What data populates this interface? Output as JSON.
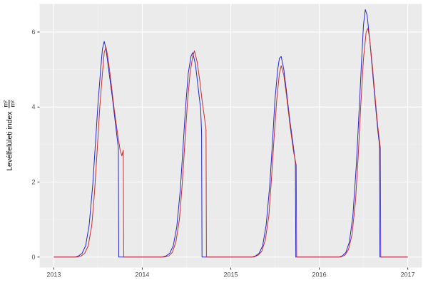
{
  "figure": {
    "bg": "#FFFFFF",
    "panel_bg": "#EBEBEB",
    "grid_major": "#FFFFFF",
    "grid_minor": "#F5F5F5",
    "tick_color": "#333333",
    "tick_label_color": "#4D4D4D"
  },
  "ylabel": {
    "text": "Levélfelületi index",
    "frac_num": "m²",
    "frac_den": "m²"
  },
  "chart_data": {
    "type": "line",
    "title": "",
    "xlabel": "",
    "ylabel": "Levélfelületi index (m²/m²)",
    "legend": "none",
    "grid": "on",
    "x_ticks": [
      2013,
      2014,
      2015,
      2016,
      2017
    ],
    "y_ticks": [
      0,
      2,
      4,
      6
    ],
    "x_minor": [
      2013.5,
      2014.5,
      2015.5,
      2016.5
    ],
    "y_minor": [
      1,
      3,
      5
    ],
    "xlim": [
      2012.84,
      2017.16
    ],
    "ylim": [
      -0.28,
      6.75
    ],
    "series": [
      {
        "name": "series-blue",
        "color": "#2525CE",
        "points": [
          [
            2013.0,
            0
          ],
          [
            2013.24,
            0
          ],
          [
            2013.28,
            0.03
          ],
          [
            2013.32,
            0.1
          ],
          [
            2013.36,
            0.3
          ],
          [
            2013.4,
            0.85
          ],
          [
            2013.44,
            1.9
          ],
          [
            2013.47,
            3.0
          ],
          [
            2013.5,
            4.1
          ],
          [
            2013.53,
            5.0
          ],
          [
            2013.55,
            5.55
          ],
          [
            2013.57,
            5.75
          ],
          [
            2013.59,
            5.55
          ],
          [
            2013.62,
            5.0
          ],
          [
            2013.66,
            4.3
          ],
          [
            2013.7,
            3.5
          ],
          [
            2013.73,
            2.9
          ],
          [
            2013.735,
            0
          ],
          [
            2013.9,
            0
          ],
          [
            2014.22,
            0
          ],
          [
            2014.27,
            0.03
          ],
          [
            2014.31,
            0.1
          ],
          [
            2014.35,
            0.3
          ],
          [
            2014.39,
            0.8
          ],
          [
            2014.43,
            1.8
          ],
          [
            2014.46,
            2.9
          ],
          [
            2014.49,
            4.0
          ],
          [
            2014.52,
            4.9
          ],
          [
            2014.55,
            5.35
          ],
          [
            2014.57,
            5.45
          ],
          [
            2014.6,
            5.15
          ],
          [
            2014.62,
            4.75
          ],
          [
            2014.64,
            4.35
          ],
          [
            2014.66,
            3.95
          ],
          [
            2014.67,
            3.3
          ],
          [
            2014.675,
            0
          ],
          [
            2014.9,
            0
          ],
          [
            2015.24,
            0
          ],
          [
            2015.28,
            0.03
          ],
          [
            2015.32,
            0.1
          ],
          [
            2015.36,
            0.3
          ],
          [
            2015.4,
            0.85
          ],
          [
            2015.44,
            1.9
          ],
          [
            2015.47,
            3.0
          ],
          [
            2015.5,
            4.2
          ],
          [
            2015.53,
            5.0
          ],
          [
            2015.55,
            5.3
          ],
          [
            2015.57,
            5.35
          ],
          [
            2015.6,
            5.0
          ],
          [
            2015.63,
            4.4
          ],
          [
            2015.67,
            3.6
          ],
          [
            2015.71,
            2.9
          ],
          [
            2015.73,
            2.5
          ],
          [
            2015.735,
            0
          ],
          [
            2015.9,
            0
          ],
          [
            2016.22,
            0
          ],
          [
            2016.26,
            0.03
          ],
          [
            2016.3,
            0.12
          ],
          [
            2016.34,
            0.4
          ],
          [
            2016.38,
            1.1
          ],
          [
            2016.42,
            2.5
          ],
          [
            2016.45,
            3.9
          ],
          [
            2016.48,
            5.3
          ],
          [
            2016.5,
            6.2
          ],
          [
            2016.52,
            6.6
          ],
          [
            2016.54,
            6.45
          ],
          [
            2016.57,
            5.8
          ],
          [
            2016.6,
            5.0
          ],
          [
            2016.63,
            4.2
          ],
          [
            2016.66,
            3.4
          ],
          [
            2016.68,
            3.0
          ],
          [
            2016.685,
            0
          ],
          [
            2016.9,
            0
          ],
          [
            2017.0,
            0
          ]
        ]
      },
      {
        "name": "series-red",
        "color": "#C03030",
        "points": [
          [
            2013.0,
            0
          ],
          [
            2013.27,
            0
          ],
          [
            2013.31,
            0.03
          ],
          [
            2013.35,
            0.1
          ],
          [
            2013.39,
            0.3
          ],
          [
            2013.43,
            0.85
          ],
          [
            2013.46,
            1.7
          ],
          [
            2013.49,
            2.8
          ],
          [
            2013.52,
            4.0
          ],
          [
            2013.55,
            4.9
          ],
          [
            2013.57,
            5.45
          ],
          [
            2013.59,
            5.6
          ],
          [
            2013.61,
            5.35
          ],
          [
            2013.64,
            4.8
          ],
          [
            2013.68,
            4.0
          ],
          [
            2013.72,
            3.3
          ],
          [
            2013.75,
            2.85
          ],
          [
            2013.77,
            2.7
          ],
          [
            2013.785,
            2.85
          ],
          [
            2013.79,
            0
          ],
          [
            2013.95,
            0
          ],
          [
            2014.25,
            0
          ],
          [
            2014.3,
            0.03
          ],
          [
            2014.34,
            0.12
          ],
          [
            2014.38,
            0.4
          ],
          [
            2014.42,
            1.0
          ],
          [
            2014.45,
            1.9
          ],
          [
            2014.48,
            3.0
          ],
          [
            2014.51,
            4.1
          ],
          [
            2014.54,
            4.9
          ],
          [
            2014.57,
            5.35
          ],
          [
            2014.59,
            5.5
          ],
          [
            2014.62,
            5.2
          ],
          [
            2014.65,
            4.7
          ],
          [
            2014.68,
            4.1
          ],
          [
            2014.71,
            3.6
          ],
          [
            2014.72,
            3.4
          ],
          [
            2014.725,
            0
          ],
          [
            2014.95,
            0
          ],
          [
            2015.26,
            0
          ],
          [
            2015.31,
            0.05
          ],
          [
            2015.35,
            0.15
          ],
          [
            2015.39,
            0.45
          ],
          [
            2015.43,
            1.1
          ],
          [
            2015.46,
            2.1
          ],
          [
            2015.49,
            3.2
          ],
          [
            2015.52,
            4.2
          ],
          [
            2015.55,
            4.9
          ],
          [
            2015.57,
            5.1
          ],
          [
            2015.6,
            4.85
          ],
          [
            2015.63,
            4.3
          ],
          [
            2015.67,
            3.5
          ],
          [
            2015.71,
            2.8
          ],
          [
            2015.74,
            2.45
          ],
          [
            2015.745,
            0
          ],
          [
            2015.95,
            0
          ],
          [
            2016.24,
            0
          ],
          [
            2016.29,
            0.05
          ],
          [
            2016.33,
            0.2
          ],
          [
            2016.37,
            0.6
          ],
          [
            2016.41,
            1.5
          ],
          [
            2016.44,
            2.7
          ],
          [
            2016.47,
            4.1
          ],
          [
            2016.5,
            5.3
          ],
          [
            2016.53,
            6.0
          ],
          [
            2016.55,
            6.1
          ],
          [
            2016.57,
            5.8
          ],
          [
            2016.6,
            5.1
          ],
          [
            2016.63,
            4.3
          ],
          [
            2016.66,
            3.5
          ],
          [
            2016.69,
            2.9
          ],
          [
            2016.695,
            0
          ],
          [
            2016.95,
            0
          ],
          [
            2017.0,
            0
          ]
        ]
      }
    ]
  }
}
